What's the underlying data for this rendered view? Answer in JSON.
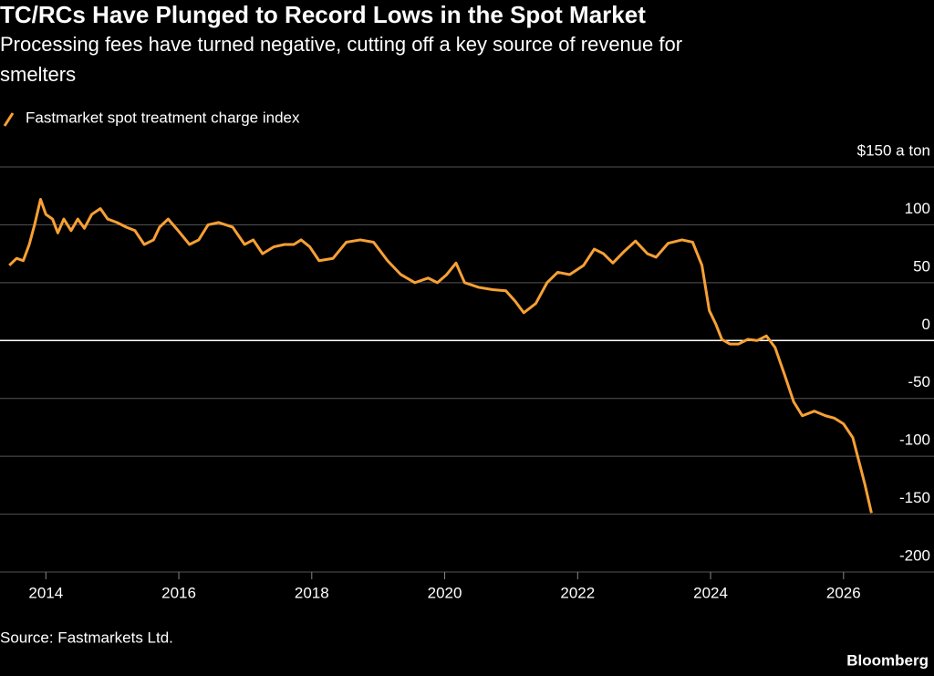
{
  "chart_data": {
    "type": "line",
    "title": "TC/RCs Have Plunged to Record Lows in the Spot Market",
    "subtitle": "Processing fees have turned negative, cutting off a key source of revenue for smelters",
    "source": "Source: Fastmarkets Ltd.",
    "brand": "Bloomberg",
    "x": [
      2013.45,
      2013.56,
      2013.66,
      2013.75,
      2013.83,
      2013.92,
      2014.0,
      2014.1,
      2014.18,
      2014.27,
      2014.38,
      2014.48,
      2014.58,
      2014.69,
      2014.82,
      2014.93,
      2015.07,
      2015.21,
      2015.34,
      2015.48,
      2015.62,
      2015.71,
      2015.84,
      2015.99,
      2016.16,
      2016.3,
      2016.44,
      2016.6,
      2016.81,
      2016.99,
      2017.12,
      2017.26,
      2017.43,
      2017.59,
      2017.73,
      2017.84,
      2017.97,
      2018.11,
      2018.32,
      2018.52,
      2018.73,
      2018.93,
      2019.14,
      2019.34,
      2019.55,
      2019.75,
      2019.89,
      2020.03,
      2020.17,
      2020.3,
      2020.51,
      2020.72,
      2020.92,
      2021.06,
      2021.19,
      2021.37,
      2021.54,
      2021.7,
      2021.88,
      2022.09,
      2022.25,
      2022.39,
      2022.53,
      2022.7,
      2022.87,
      2023.05,
      2023.18,
      2023.36,
      2023.57,
      2023.73,
      2023.87,
      2023.98,
      2024.08,
      2024.17,
      2024.29,
      2024.42,
      2024.56,
      2024.7,
      2024.84,
      2024.97,
      2025.11,
      2025.25,
      2025.38,
      2025.56,
      2025.73,
      2025.86,
      2026.0,
      2026.14,
      2026.23,
      2026.32,
      2026.42
    ],
    "series": [
      {
        "name": "Fastmarket spot treatment charge index",
        "color": "#f7a035",
        "values": [
          65,
          71,
          69,
          83,
          100,
          122,
          109,
          105,
          93,
          105,
          95,
          105,
          97,
          109,
          114,
          105,
          102,
          98,
          95,
          83,
          87,
          98,
          105,
          95,
          83,
          87,
          100,
          102,
          98,
          83,
          87,
          75,
          81,
          83,
          83,
          87,
          81,
          69,
          71,
          85,
          87,
          85,
          69,
          57,
          50,
          54,
          50,
          57,
          67,
          50,
          46,
          44,
          43,
          34,
          24,
          32,
          50,
          59,
          57,
          65,
          79,
          75,
          67,
          77,
          86,
          75,
          72,
          84,
          87,
          85,
          65,
          26,
          14,
          1,
          -3,
          -3,
          1,
          0,
          4,
          -6,
          -29,
          -53,
          -65,
          -61,
          -65,
          -67,
          -72,
          -84,
          -104,
          -124,
          -149
        ]
      }
    ],
    "xlim": [
      2013.31,
      2026.62
    ],
    "xticks": [
      2014,
      2016,
      2018,
      2020,
      2022,
      2024,
      2026
    ],
    "ylim": [
      -200,
      150
    ],
    "yticks": [
      {
        "value": 150,
        "label": "$150 a ton"
      },
      100,
      50,
      0,
      -50,
      -100,
      -150,
      -200
    ],
    "grid": true
  }
}
